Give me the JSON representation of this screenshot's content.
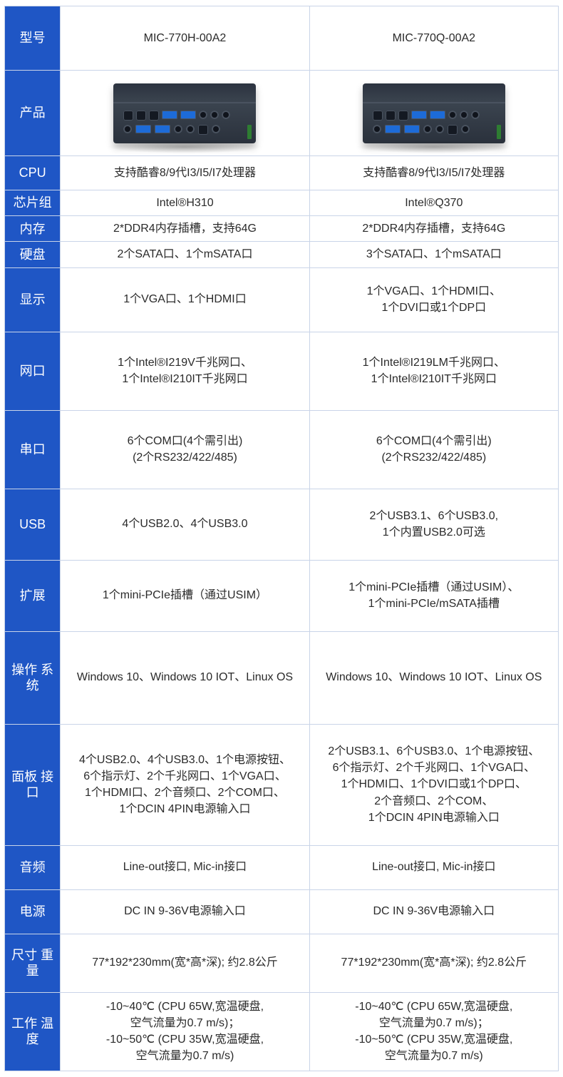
{
  "colors": {
    "header_bg": "#1f56c5",
    "header_fg": "#ffffff",
    "cell_bg": "#ffffff",
    "border": "#c9d4e8",
    "text": "#2a2a2a"
  },
  "col_labels": [
    "型号",
    "产品",
    "CPU",
    "芯片组",
    "内存",
    "硬盘",
    "显示",
    "网口",
    "串口",
    "USB",
    "扩展",
    "操作系统",
    "面板接口",
    "音频",
    "电源",
    "尺寸重量",
    "工作温度"
  ],
  "labels": {
    "model": "型号",
    "product": "产品",
    "cpu": "CPU",
    "chipset": "芯片组",
    "memory": "内存",
    "storage": "硬盘",
    "display": "显示",
    "lan": "网口",
    "serial": "串口",
    "usb": "USB",
    "expansion": "扩展",
    "os": "操作系统",
    "panel": "面板接口",
    "audio": "音频",
    "power": "电源",
    "size": "尺寸重量",
    "temp": "工作温度",
    "os_ln1": "操作",
    "os_ln2": "系统",
    "panel_ln1": "面板",
    "panel_ln2": "接口",
    "size_ln1": "尺寸",
    "size_ln2": "重量",
    "temp_ln1": "工作",
    "temp_ln2": "温度"
  },
  "models": {
    "a": "MIC-770H-00A2",
    "b": "MIC-770Q-00A2"
  },
  "cpu": {
    "a": "支持酷睿8/9代I3/I5/I7处理器",
    "b": "支持酷睿8/9代I3/I5/I7处理器"
  },
  "chipset": {
    "a": "Intel®H310",
    "b": "Intel®Q370"
  },
  "memory": {
    "a": "2*DDR4内存插槽，支持64G",
    "b": "2*DDR4内存插槽，支持64G"
  },
  "storage": {
    "a": "2个SATA口、1个mSATA口",
    "b": "3个SATA口、1个mSATA口"
  },
  "display": {
    "a": [
      "1个VGA口、1个HDMI口"
    ],
    "b": [
      "1个VGA口、1个HDMI口、",
      "1个DVI口或1个DP口"
    ]
  },
  "lan": {
    "a": [
      "1个Intel®I219V千兆网口、",
      "1个Intel®I210IT千兆网口"
    ],
    "b": [
      "1个Intel®I219LM千兆网口、",
      "1个Intel®I210IT千兆网口"
    ]
  },
  "serial": {
    "a": [
      "6个COM口(4个需引出)",
      "(2个RS232/422/485)"
    ],
    "b": [
      "6个COM口(4个需引出)",
      "(2个RS232/422/485)"
    ]
  },
  "usb": {
    "a": [
      "4个USB2.0、4个USB3.0"
    ],
    "b": [
      "2个USB3.1、6个USB3.0,",
      "1个内置USB2.0可选"
    ]
  },
  "expansion": {
    "a": [
      "1个mini-PCIe插槽（通过USIM）"
    ],
    "b": [
      "1个mini-PCIe插槽（通过USIM）、",
      "1个mini-PCIe/mSATA插槽"
    ]
  },
  "os": {
    "a": "Windows 10、Windows 10 IOT、Linux OS",
    "b": "Windows 10、Windows 10 IOT、Linux OS"
  },
  "panel": {
    "a": [
      "4个USB2.0、4个USB3.0、1个电源按钮、",
      "6个指示灯、2个千兆网口、1个VGA口、",
      "1个HDMI口、2个音频口、2个COM口、",
      "1个DCIN 4PIN电源输入口"
    ],
    "b": [
      "2个USB3.1、6个USB3.0、1个电源按钮、",
      "6个指示灯、2个千兆网口、1个VGA口、",
      "1个HDMI口、1个DVI口或1个DP口、",
      "2个音频口、2个COM、",
      "1个DCIN 4PIN电源输入口"
    ]
  },
  "audio": {
    "a": "Line-out接口, Mic-in接口",
    "b": "Line-out接口, Mic-in接口"
  },
  "power": {
    "a": "DC IN 9-36V电源输入口",
    "b": "DC IN 9-36V电源输入口"
  },
  "size": {
    "a": "77*192*230mm(宽*高*深); 约2.8公斤",
    "b": "77*192*230mm(宽*高*深); 约2.8公斤"
  },
  "temp": {
    "a": [
      "-10~40℃ (CPU 65W,宽温硬盘,",
      "空气流量为0.7 m/s)；",
      "-10~50℃ (CPU 35W,宽温硬盘,",
      "空气流量为0.7 m/s)"
    ],
    "b": [
      "-10~40℃ (CPU 65W,宽温硬盘,",
      "空气流量为0.7 m/s)；",
      "-10~50℃ (CPU 35W,宽温硬盘,",
      "空气流量为0.7 m/s)"
    ]
  }
}
